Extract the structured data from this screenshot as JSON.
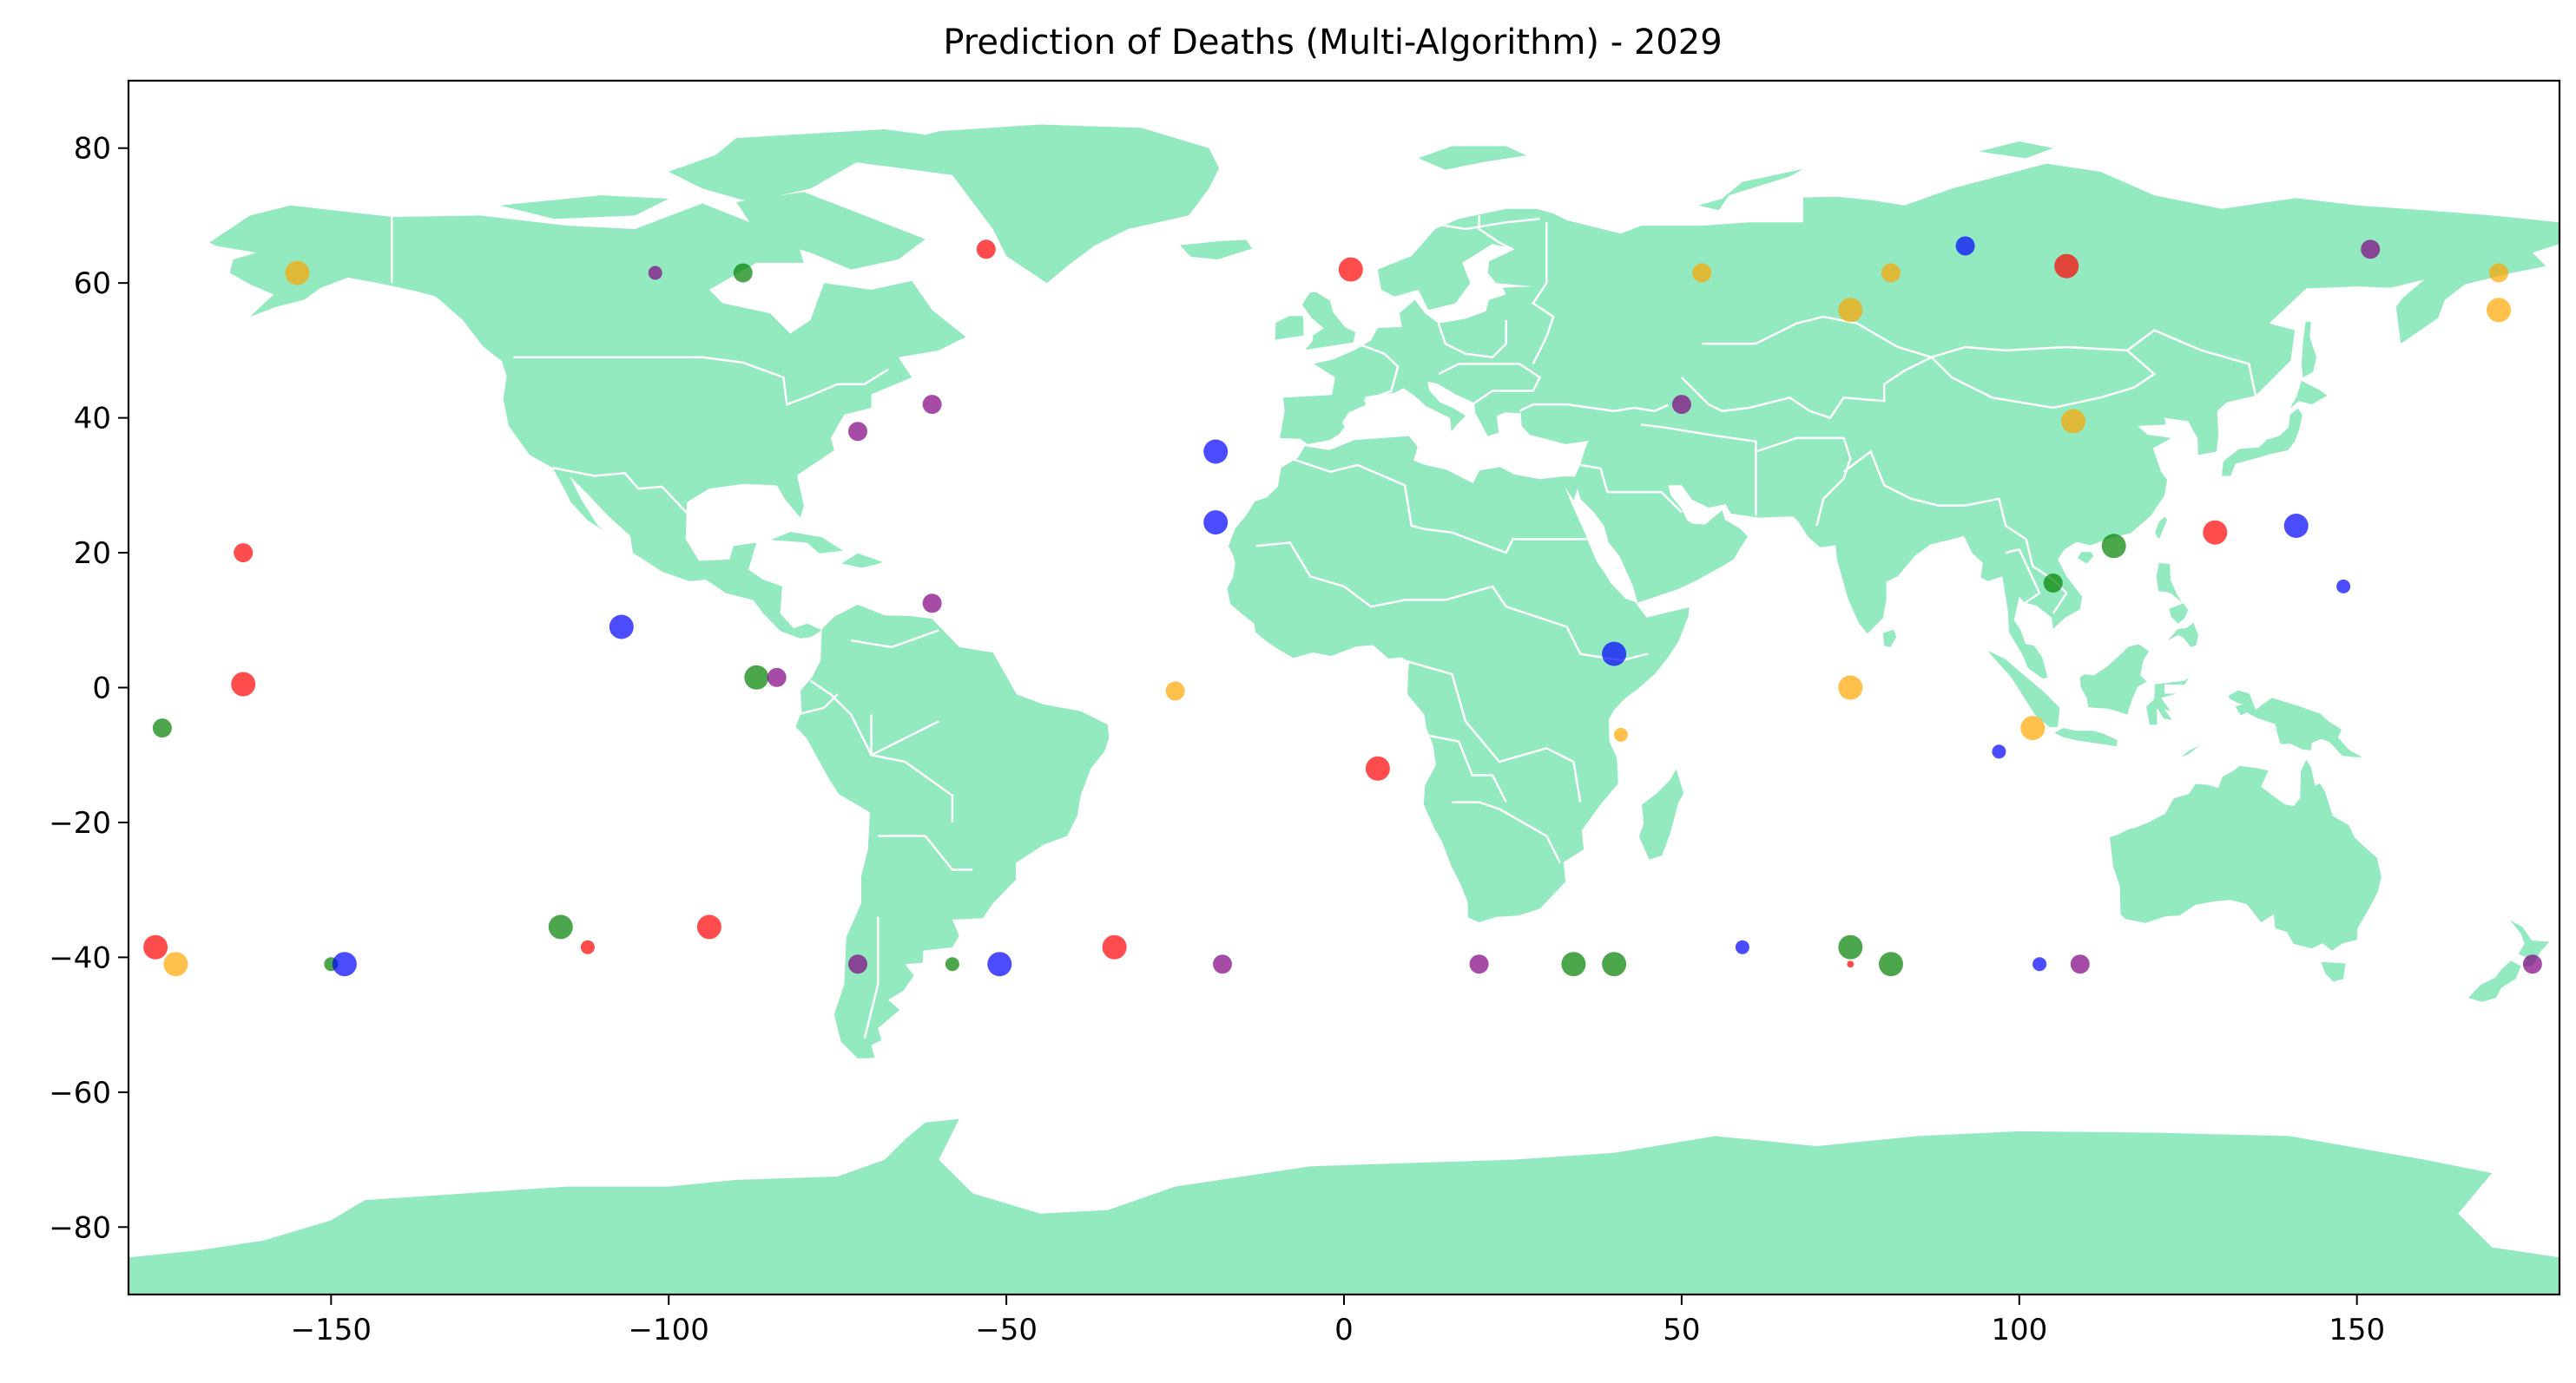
{
  "chart_data": {
    "type": "scatter",
    "title": "Prediction of Deaths (Multi-Algorithm) - 2029",
    "xlabel": "",
    "ylabel": "",
    "xlim": [
      -180,
      180
    ],
    "ylim": [
      -90,
      90
    ],
    "x_ticks": [
      -150,
      -100,
      -50,
      0,
      50,
      100,
      150
    ],
    "y_ticks": [
      -80,
      -60,
      -40,
      -20,
      0,
      20,
      40,
      60,
      80
    ],
    "x_tick_labels": [
      "−150",
      "−100",
      "−50",
      "0",
      "50",
      "100",
      "150"
    ],
    "y_tick_labels": [
      "−80",
      "−60",
      "−40",
      "−20",
      "0",
      "20",
      "40",
      "60",
      "80"
    ],
    "grid": false,
    "legend": "none",
    "background_map": "world land masses with country borders",
    "land_color": "#93e9c0",
    "border_color": "#ffffff",
    "series_colors": {
      "red": "#ff0000",
      "orange": "#ffa500",
      "green": "#008000",
      "blue": "#0000ff",
      "purple": "#800080"
    },
    "points": [
      {
        "x": -155,
        "y": 61.5,
        "color": "orange",
        "size": 3
      },
      {
        "x": -102,
        "y": 61.5,
        "color": "purple",
        "size": 1
      },
      {
        "x": -89,
        "y": 61.5,
        "color": "green",
        "size": 2
      },
      {
        "x": -53,
        "y": 65,
        "color": "red",
        "size": 2
      },
      {
        "x": 1,
        "y": 62,
        "color": "red",
        "size": 3
      },
      {
        "x": 53,
        "y": 61.5,
        "color": "orange",
        "size": 2
      },
      {
        "x": 75,
        "y": 56,
        "color": "orange",
        "size": 3
      },
      {
        "x": 81,
        "y": 61.5,
        "color": "orange",
        "size": 2
      },
      {
        "x": 92,
        "y": 65.5,
        "color": "blue",
        "size": 2
      },
      {
        "x": 107,
        "y": 62.5,
        "color": "red",
        "size": 3
      },
      {
        "x": 152,
        "y": 65,
        "color": "purple",
        "size": 2
      },
      {
        "x": 171,
        "y": 61.5,
        "color": "orange",
        "size": 2
      },
      {
        "x": 171,
        "y": 56,
        "color": "orange",
        "size": 3
      },
      {
        "x": -72,
        "y": 38,
        "color": "purple",
        "size": 2
      },
      {
        "x": -61,
        "y": 42,
        "color": "purple",
        "size": 2
      },
      {
        "x": -19,
        "y": 35,
        "color": "blue",
        "size": 3
      },
      {
        "x": 50,
        "y": 42,
        "color": "purple",
        "size": 2
      },
      {
        "x": 108,
        "y": 39.5,
        "color": "orange",
        "size": 3
      },
      {
        "x": -163,
        "y": 20,
        "color": "red",
        "size": 2
      },
      {
        "x": -19,
        "y": 24.5,
        "color": "blue",
        "size": 3
      },
      {
        "x": 114,
        "y": 21,
        "color": "green",
        "size": 3
      },
      {
        "x": 129,
        "y": 23,
        "color": "red",
        "size": 3
      },
      {
        "x": 141,
        "y": 24,
        "color": "blue",
        "size": 3
      },
      {
        "x": 148,
        "y": 15,
        "color": "blue",
        "size": 1
      },
      {
        "x": 105,
        "y": 15.5,
        "color": "green",
        "size": 2
      },
      {
        "x": -61,
        "y": 12.5,
        "color": "purple",
        "size": 2
      },
      {
        "x": -107,
        "y": 9,
        "color": "blue",
        "size": 3
      },
      {
        "x": -163,
        "y": 0.5,
        "color": "red",
        "size": 3
      },
      {
        "x": -87,
        "y": 1.5,
        "color": "green",
        "size": 3
      },
      {
        "x": -84,
        "y": 1.5,
        "color": "purple",
        "size": 2
      },
      {
        "x": -25,
        "y": -0.5,
        "color": "orange",
        "size": 2
      },
      {
        "x": 40,
        "y": 5,
        "color": "blue",
        "size": 3
      },
      {
        "x": 75,
        "y": 0,
        "color": "orange",
        "size": 3
      },
      {
        "x": -175,
        "y": -6,
        "color": "green",
        "size": 2
      },
      {
        "x": 5,
        "y": -12,
        "color": "red",
        "size": 3
      },
      {
        "x": 41,
        "y": -7,
        "color": "orange",
        "size": 1
      },
      {
        "x": 97,
        "y": -9.5,
        "color": "blue",
        "size": 1
      },
      {
        "x": 102,
        "y": -6,
        "color": "orange",
        "size": 3
      },
      {
        "x": -176,
        "y": -38.5,
        "color": "red",
        "size": 3
      },
      {
        "x": -173,
        "y": -41,
        "color": "orange",
        "size": 3
      },
      {
        "x": -150,
        "y": -41,
        "color": "green",
        "size": 1
      },
      {
        "x": -148,
        "y": -41,
        "color": "blue",
        "size": 3
      },
      {
        "x": -116,
        "y": -35.5,
        "color": "green",
        "size": 3
      },
      {
        "x": -112,
        "y": -38.5,
        "color": "red",
        "size": 1
      },
      {
        "x": -94,
        "y": -35.5,
        "color": "red",
        "size": 3
      },
      {
        "x": -72,
        "y": -41,
        "color": "purple",
        "size": 2
      },
      {
        "x": -58,
        "y": -41,
        "color": "green",
        "size": 1
      },
      {
        "x": -51,
        "y": -41,
        "color": "blue",
        "size": 3
      },
      {
        "x": -34,
        "y": -38.5,
        "color": "red",
        "size": 3
      },
      {
        "x": -18,
        "y": -41,
        "color": "purple",
        "size": 2
      },
      {
        "x": 20,
        "y": -41,
        "color": "purple",
        "size": 2
      },
      {
        "x": 34,
        "y": -41,
        "color": "green",
        "size": 3
      },
      {
        "x": 40,
        "y": -41,
        "color": "green",
        "size": 3
      },
      {
        "x": 59,
        "y": -38.5,
        "color": "blue",
        "size": 1
      },
      {
        "x": 75,
        "y": -38.5,
        "color": "green",
        "size": 3
      },
      {
        "x": 75,
        "y": -41,
        "color": "red",
        "size": 0
      },
      {
        "x": 81,
        "y": -41,
        "color": "green",
        "size": 3
      },
      {
        "x": 103,
        "y": -41,
        "color": "blue",
        "size": 1
      },
      {
        "x": 109,
        "y": -41,
        "color": "purple",
        "size": 2
      },
      {
        "x": 176,
        "y": -41,
        "color": "purple",
        "size": 2
      }
    ]
  }
}
